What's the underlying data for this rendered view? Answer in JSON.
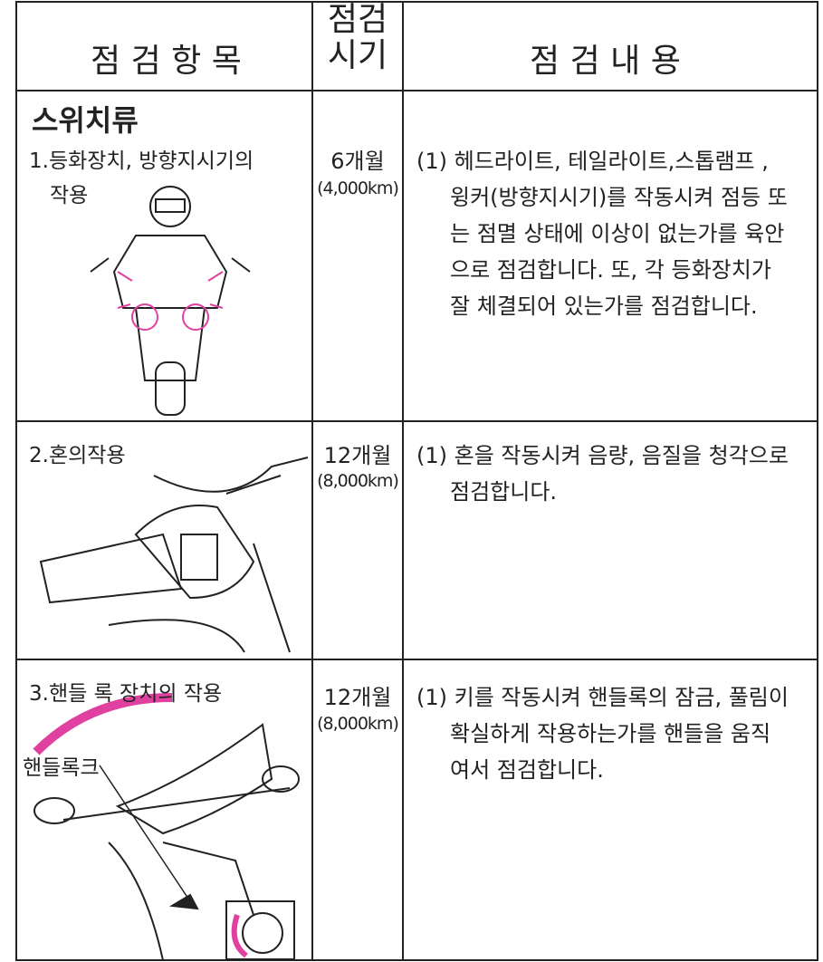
{
  "header": {
    "item": "점 검 항 목",
    "period": [
      "점검",
      "시기"
    ],
    "content": "점 검 내 용"
  },
  "section": "스위치류",
  "rows": [
    {
      "item": [
        "1.등화장치, 방향지시기의",
        "작용"
      ],
      "period": "6개월",
      "distance": "(4,000km)",
      "content": [
        "(1) 헤드라이트, 테일라이트,스톱램프 ,",
        "윙커(방향지시기)를 작동시켜 점등 또",
        "는 점멸 상태에 이상이 없는가를 육안",
        "으로 점검합니다. 또, 각 등화장치가",
        "잘 체결되어 있는가를 점검합니다."
      ]
    },
    {
      "item": [
        "2.혼의작용"
      ],
      "period": "12개월",
      "distance": "(8,000km)",
      "content": [
        "(1) 혼을 작동시켜 음량, 음질을 청각으로",
        "점검합니다."
      ]
    },
    {
      "item": [
        "3.핸들 록 장치의 작용"
      ],
      "period": "12개월",
      "distance": "(8,000km)",
      "content": [
        "(1) 키를 작동시켜 핸들록의 잠금, 풀림이",
        "확실하게 작용하는가를 핸들을 움직",
        "여서 점검합니다."
      ],
      "callout": "핸들록크"
    }
  ]
}
